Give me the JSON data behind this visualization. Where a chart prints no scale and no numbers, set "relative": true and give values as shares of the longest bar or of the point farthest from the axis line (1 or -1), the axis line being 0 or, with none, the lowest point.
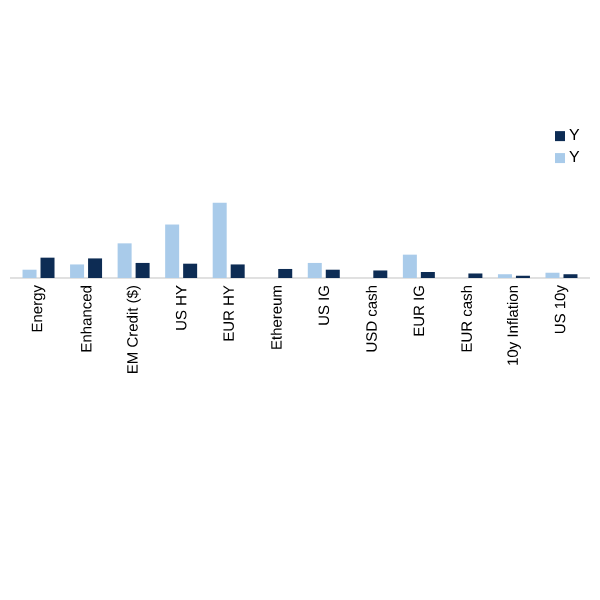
{
  "chart_data": {
    "type": "bar",
    "relative": true,
    "legend": "right",
    "categories": [
      "Energy",
      "Enhanced",
      "EM Credit ($)",
      "US HY",
      "EUR HY",
      "Ethereum",
      "US IG",
      "USD cash",
      "EUR IG",
      "EUR cash",
      "10y Inflation",
      "US 10y"
    ],
    "series": [
      {
        "name": "Y",
        "color": "#a9cbea",
        "values": [
          0.11,
          0.18,
          0.46,
          0.71,
          1,
          null,
          0.2,
          null,
          0.31,
          null,
          0.05,
          0.07
        ]
      },
      {
        "name": "Y",
        "color": "#0d2c54",
        "values": [
          0.27,
          0.26,
          0.2,
          0.19,
          0.18,
          0.12,
          0.11,
          0.1,
          0.08,
          0.06,
          0.03,
          0.05
        ]
      }
    ]
  }
}
